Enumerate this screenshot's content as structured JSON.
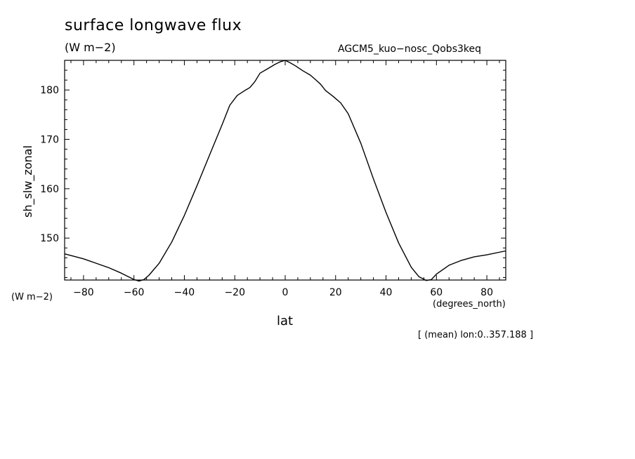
{
  "chart_data": {
    "type": "line",
    "title": "surface longwave flux",
    "units": "(W m−2)",
    "model_label": "AGCM5_kuo−nosc_Qobs3keq",
    "ylabel": "sh_slw_zonal",
    "y_units": "(W m−2)",
    "xlabel": "lat",
    "x_units": "(degrees_north)",
    "annotation": "[ (mean) lon:0..357.188 ]",
    "xlim": [
      -87.5,
      87.5
    ],
    "ylim": [
      141.5,
      186
    ],
    "x_ticks": [
      -80,
      -60,
      -40,
      -20,
      0,
      20,
      40,
      60,
      80
    ],
    "x_tick_labels": [
      "−80",
      "−60",
      "−40",
      "−20",
      "0",
      "20",
      "40",
      "60",
      "80"
    ],
    "y_ticks": [
      150,
      160,
      170,
      180
    ],
    "y_tick_labels": [
      "150",
      "160",
      "170",
      "180"
    ],
    "grid": false,
    "series": [
      {
        "x": [
          -87.5,
          -80,
          -75,
          -70,
          -65,
          -60,
          -58,
          -56,
          -54,
          -52,
          -50,
          -45,
          -40,
          -35,
          -30,
          -25,
          -22,
          -19,
          -16,
          -14,
          -12,
          -10,
          -7,
          -4,
          -2,
          0,
          2,
          4,
          7,
          10,
          12,
          14,
          16,
          19,
          22,
          25,
          30,
          35,
          40,
          45,
          50,
          53,
          56,
          58,
          60,
          65,
          70,
          75,
          80,
          87.5
        ],
        "y": [
          146.8,
          145.8,
          144.9,
          144.0,
          142.9,
          141.6,
          141.3,
          141.6,
          142.5,
          143.7,
          144.9,
          149.2,
          154.6,
          160.6,
          166.8,
          173.0,
          176.9,
          178.9,
          179.9,
          180.5,
          181.7,
          183.4,
          184.3,
          185.2,
          185.7,
          186.0,
          185.5,
          184.9,
          183.9,
          183.0,
          182.1,
          181.2,
          179.9,
          178.7,
          177.4,
          175.2,
          169.2,
          162.0,
          155.2,
          149.0,
          144.1,
          142.2,
          141.4,
          141.6,
          142.7,
          144.5,
          145.5,
          146.2,
          146.6,
          147.4
        ]
      }
    ],
    "line_color": "#000000"
  }
}
